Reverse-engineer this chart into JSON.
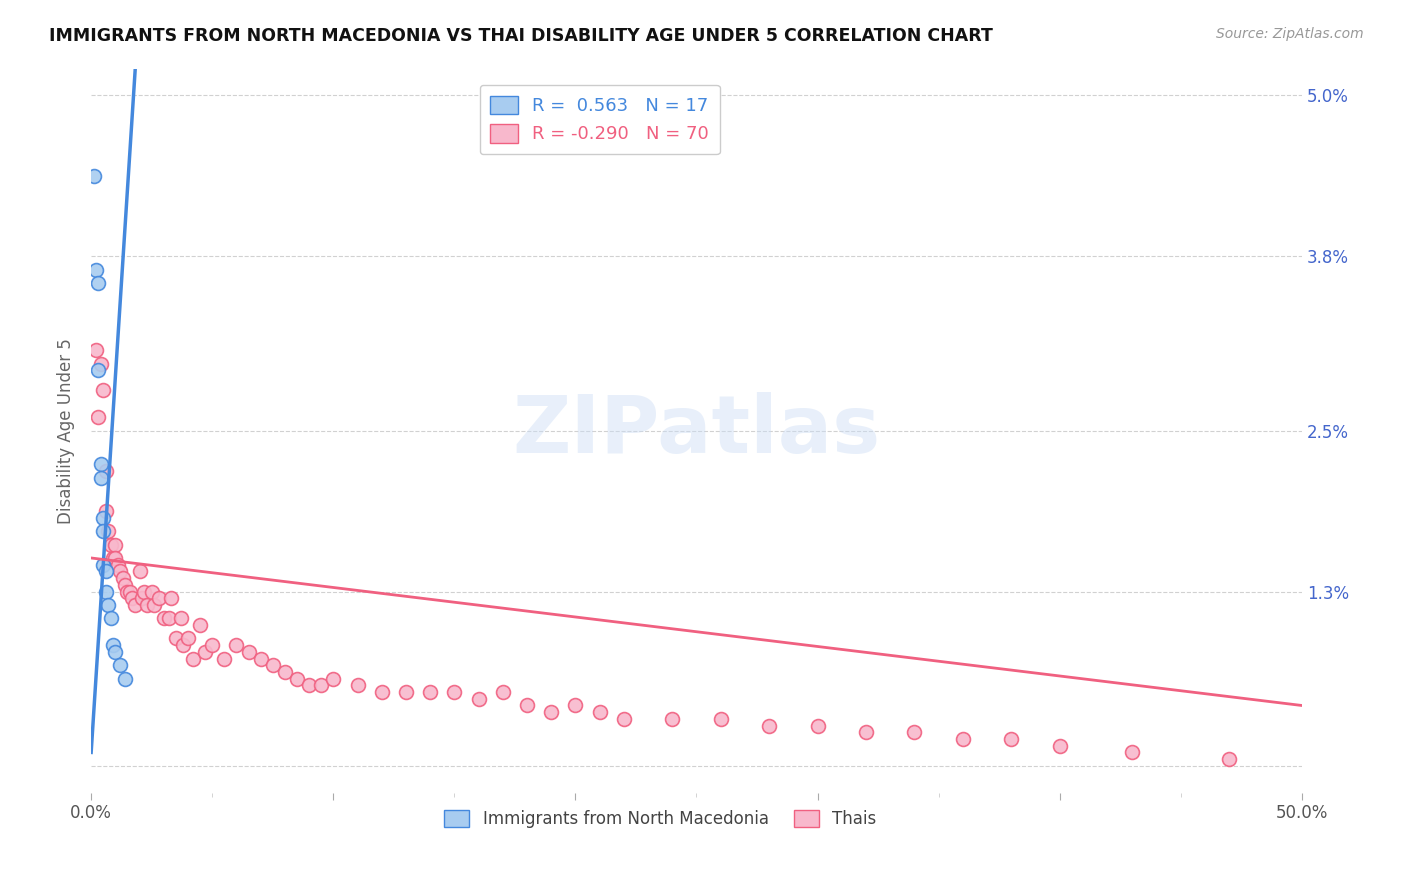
{
  "title": "IMMIGRANTS FROM NORTH MACEDONIA VS THAI DISABILITY AGE UNDER 5 CORRELATION CHART",
  "source": "Source: ZipAtlas.com",
  "ylabel": "Disability Age Under 5",
  "yticks": [
    0.0,
    0.013,
    0.025,
    0.038,
    0.05
  ],
  "ytick_labels_right": [
    "",
    "1.3%",
    "2.5%",
    "3.8%",
    "5.0%"
  ],
  "xlim": [
    0.0,
    0.5
  ],
  "ylim": [
    -0.002,
    0.052
  ],
  "legend_blue_r": "0.563",
  "legend_blue_n": "17",
  "legend_pink_r": "-0.290",
  "legend_pink_n": "70",
  "blue_color": "#A8CCF0",
  "blue_line_color": "#4488DD",
  "pink_color": "#F8B8CC",
  "pink_line_color": "#F06080",
  "watermark": "ZIPatlas",
  "blue_scatter_x": [
    0.001,
    0.002,
    0.003,
    0.003,
    0.004,
    0.004,
    0.005,
    0.005,
    0.005,
    0.006,
    0.006,
    0.007,
    0.008,
    0.009,
    0.01,
    0.012,
    0.014
  ],
  "blue_scatter_y": [
    0.044,
    0.037,
    0.036,
    0.0295,
    0.0225,
    0.0215,
    0.0185,
    0.0175,
    0.015,
    0.0145,
    0.013,
    0.012,
    0.011,
    0.009,
    0.0085,
    0.0075,
    0.0065
  ],
  "pink_scatter_x": [
    0.002,
    0.003,
    0.004,
    0.005,
    0.006,
    0.006,
    0.007,
    0.008,
    0.009,
    0.01,
    0.01,
    0.011,
    0.012,
    0.013,
    0.014,
    0.015,
    0.016,
    0.017,
    0.018,
    0.02,
    0.021,
    0.022,
    0.023,
    0.025,
    0.026,
    0.028,
    0.03,
    0.032,
    0.033,
    0.035,
    0.037,
    0.038,
    0.04,
    0.042,
    0.045,
    0.047,
    0.05,
    0.055,
    0.06,
    0.065,
    0.07,
    0.075,
    0.08,
    0.085,
    0.09,
    0.095,
    0.1,
    0.11,
    0.12,
    0.13,
    0.14,
    0.15,
    0.16,
    0.17,
    0.18,
    0.19,
    0.2,
    0.21,
    0.22,
    0.24,
    0.26,
    0.28,
    0.3,
    0.32,
    0.34,
    0.36,
    0.38,
    0.4,
    0.43,
    0.47
  ],
  "pink_scatter_y": [
    0.031,
    0.026,
    0.03,
    0.028,
    0.022,
    0.019,
    0.0175,
    0.0165,
    0.0155,
    0.0165,
    0.0155,
    0.015,
    0.0145,
    0.014,
    0.0135,
    0.013,
    0.013,
    0.0125,
    0.012,
    0.0145,
    0.0125,
    0.013,
    0.012,
    0.013,
    0.012,
    0.0125,
    0.011,
    0.011,
    0.0125,
    0.0095,
    0.011,
    0.009,
    0.0095,
    0.008,
    0.0105,
    0.0085,
    0.009,
    0.008,
    0.009,
    0.0085,
    0.008,
    0.0075,
    0.007,
    0.0065,
    0.006,
    0.006,
    0.0065,
    0.006,
    0.0055,
    0.0055,
    0.0055,
    0.0055,
    0.005,
    0.0055,
    0.0045,
    0.004,
    0.0045,
    0.004,
    0.0035,
    0.0035,
    0.0035,
    0.003,
    0.003,
    0.0025,
    0.0025,
    0.002,
    0.002,
    0.0015,
    0.001,
    0.0005
  ],
  "blue_trendline_x": [
    0.0,
    0.018
  ],
  "blue_trendline_slope": 2.8,
  "blue_trendline_intercept": 0.001,
  "pink_trendline_x": [
    0.0,
    0.5
  ],
  "pink_trendline_slope": -0.022,
  "pink_trendline_intercept": 0.0155
}
